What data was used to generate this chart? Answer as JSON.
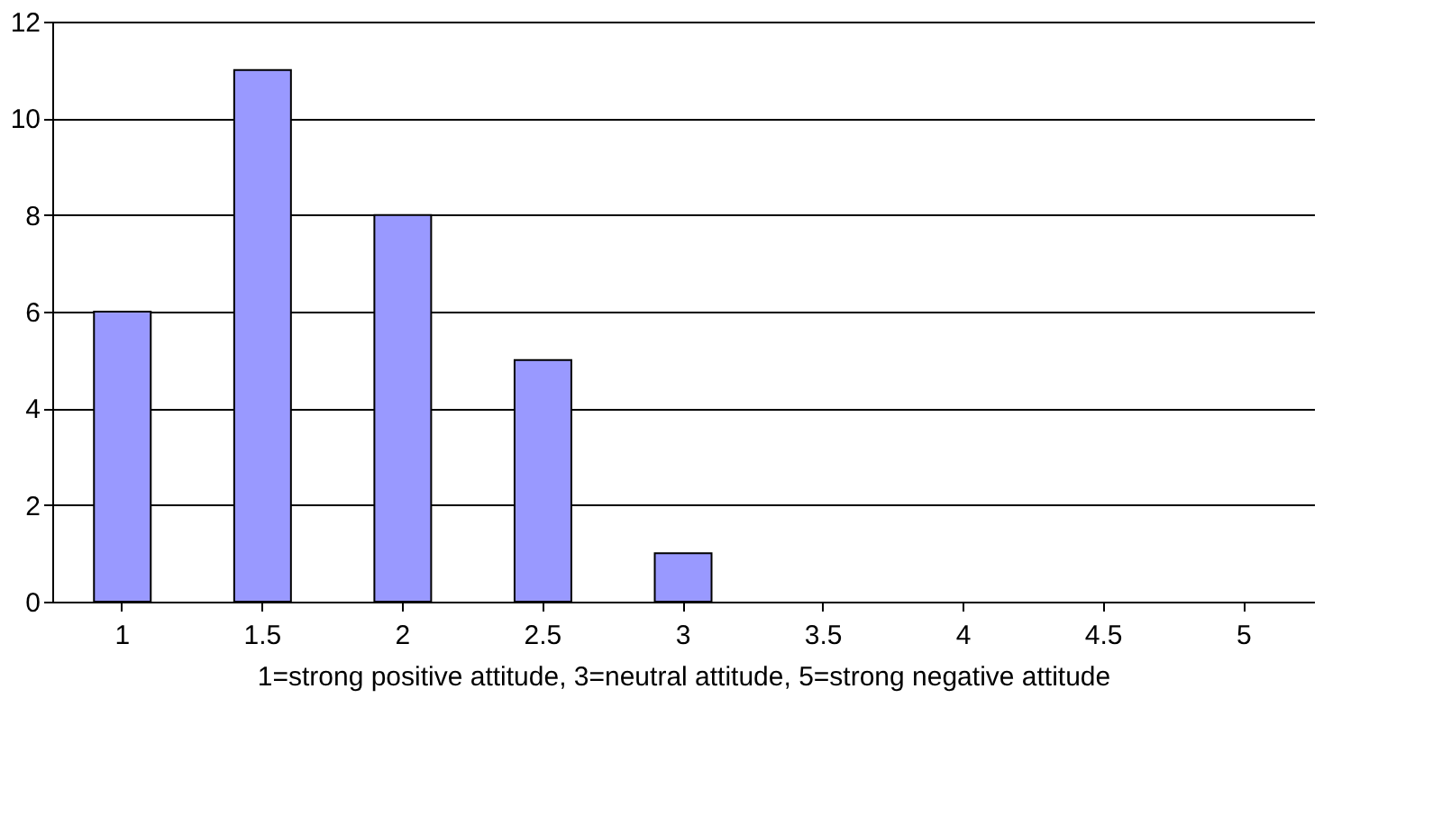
{
  "chart_data": {
    "type": "bar",
    "xlabel": "1=strong positive attitude, 3=neutral attitude, 5=strong negative attitude",
    "categories": [
      "1",
      "1.5",
      "2",
      "2.5",
      "3",
      "3.5",
      "4",
      "4.5",
      "5"
    ],
    "values": [
      6,
      11,
      8,
      5,
      1,
      0,
      0,
      0,
      0
    ],
    "color": "#9999ff",
    "ylim": [
      0,
      12
    ],
    "yticks": [
      0,
      2,
      4,
      6,
      8,
      10,
      12
    ],
    "grid": "y"
  }
}
